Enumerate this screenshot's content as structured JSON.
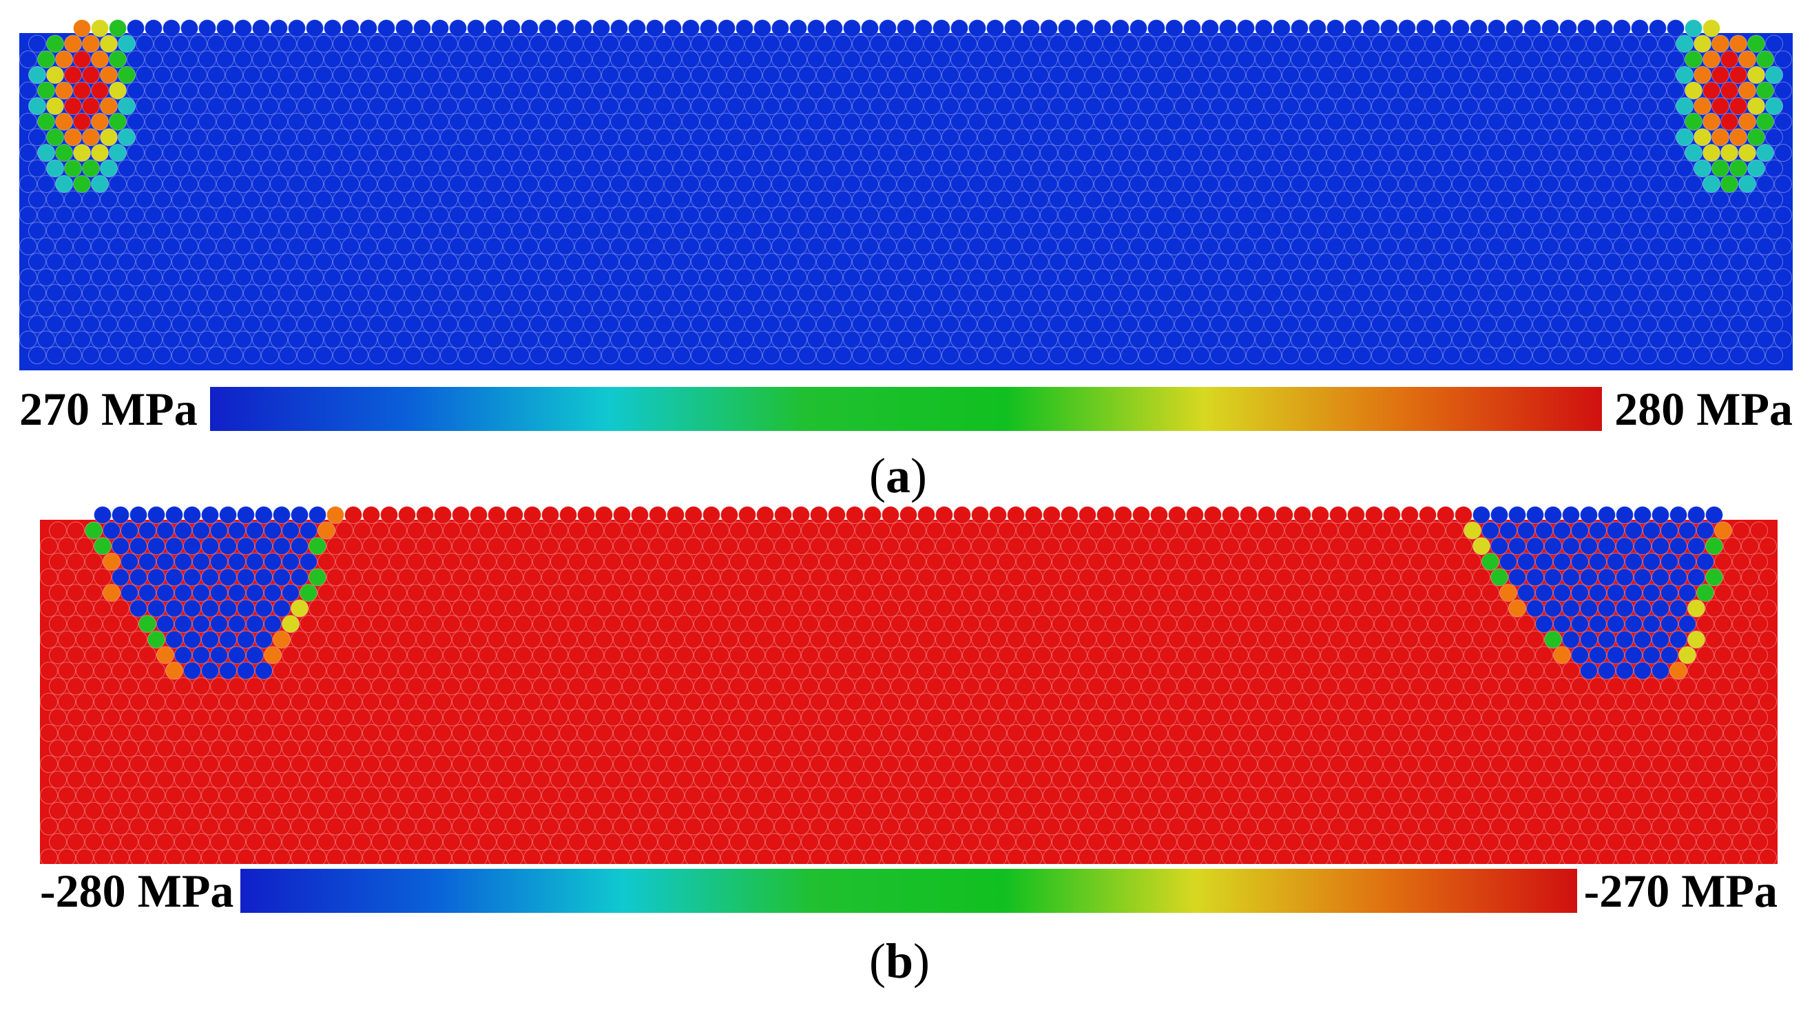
{
  "panel_a": {
    "scale_min_label": "270 MPa",
    "scale_max_label": "280 MPa",
    "caption_open": "(",
    "caption_letter": "a",
    "caption_close": ")",
    "background_color": "#0b2fd6",
    "hotspot_colors": [
      "#e01010",
      "#f07a10",
      "#d8d820",
      "#22c022",
      "#20c0c0"
    ]
  },
  "panel_b": {
    "scale_min_label": "-280 MPa",
    "scale_max_label": "-270 MPa",
    "caption_open": "(",
    "caption_letter": "b",
    "caption_close": ")",
    "background_color": "#e01212",
    "pocket_color": "#0b2fd6",
    "edge_colors": [
      "#22c022",
      "#f07a10",
      "#d8d820"
    ]
  },
  "colorbar": {
    "stops": [
      "#1020c8",
      "#0a60d8",
      "#10c8d0",
      "#20c030",
      "#10c020",
      "#d8d820",
      "#e07010",
      "#d01010"
    ]
  }
}
